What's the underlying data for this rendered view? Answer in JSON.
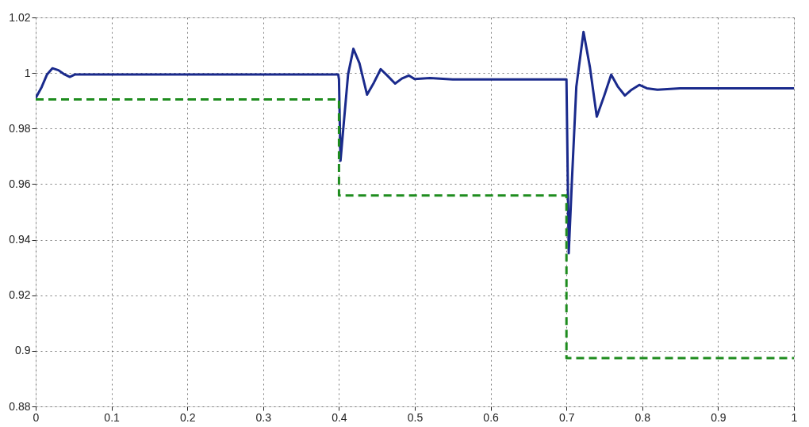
{
  "chart_data": {
    "type": "line",
    "xlim": [
      0,
      1
    ],
    "ylim": [
      0.88,
      1.02
    ],
    "xticks": [
      0,
      0.1,
      0.2,
      0.3,
      0.4,
      0.5,
      0.6,
      0.7,
      0.8,
      0.9,
      1
    ],
    "yticks": [
      0.88,
      0.9,
      0.92,
      0.94,
      0.96,
      0.98,
      1,
      1.02
    ],
    "grid": true,
    "series": [
      {
        "color": "#1a2a8c",
        "line_style": "solid",
        "x": [
          0,
          0.008,
          0.015,
          0.022,
          0.03,
          0.038,
          0.045,
          0.052,
          0.1,
          0.2,
          0.3,
          0.399,
          0.4,
          0.402,
          0.406,
          0.412,
          0.419,
          0.427,
          0.437,
          0.446,
          0.455,
          0.464,
          0.474,
          0.483,
          0.492,
          0.5,
          0.52,
          0.55,
          0.6,
          0.65,
          0.699,
          0.7,
          0.703,
          0.707,
          0.713,
          0.7225,
          0.731,
          0.74,
          0.75,
          0.759,
          0.768,
          0.777,
          0.786,
          0.796,
          0.806,
          0.82,
          0.85,
          0.9,
          0.95,
          1
        ],
        "values": [
          0.991,
          0.995,
          0.9995,
          1.0017,
          1.001,
          0.9995,
          0.9986,
          0.9995,
          0.9995,
          0.9995,
          0.9995,
          0.9995,
          0.9977,
          0.9684,
          0.981,
          0.9995,
          1.0087,
          1.0035,
          0.9922,
          0.9965,
          1.0014,
          0.999,
          0.9962,
          0.998,
          0.9991,
          0.9978,
          0.9982,
          0.9977,
          0.9977,
          0.9977,
          0.9977,
          0.9977,
          0.9351,
          0.96,
          0.995,
          1.0148,
          1.002,
          0.9843,
          0.992,
          0.9994,
          0.995,
          0.9919,
          0.994,
          0.9957,
          0.9945,
          0.994,
          0.9945,
          0.9945,
          0.9945,
          0.9945
        ]
      },
      {
        "type": "step",
        "color": "#1e8c1e",
        "line_style": "dashed",
        "x": [
          0,
          0.4,
          0.7,
          1
        ],
        "values": [
          0.9905,
          0.9559,
          0.8974,
          0.8974
        ]
      }
    ]
  }
}
